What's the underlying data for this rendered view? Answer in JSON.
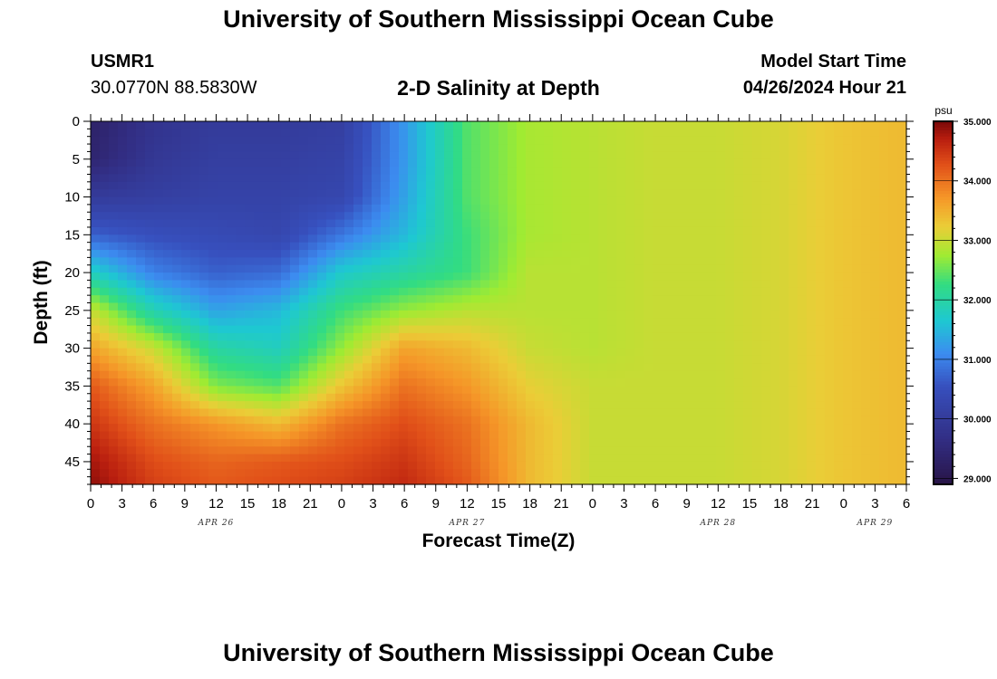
{
  "header": {
    "title": "University of Southern Mississippi Ocean Cube",
    "station_id": "USMR1",
    "coordinates": "30.0770N  88.5830W",
    "subtitle": "2-D Salinity at Depth",
    "start_label": "Model Start Time",
    "start_value": "04/26/2024 Hour 21"
  },
  "footer": {
    "title": "University of Southern Mississippi Ocean Cube"
  },
  "chart_data": {
    "type": "heatmap",
    "title": "2-D Salinity at Depth",
    "xlabel": "Forecast Time(Z)",
    "ylabel": "Depth (ft)",
    "x_tick_labels": [
      "0",
      "3",
      "6",
      "9",
      "12",
      "15",
      "18",
      "21",
      "0",
      "3",
      "6",
      "9",
      "12",
      "15",
      "18",
      "21",
      "0",
      "3",
      "6",
      "9",
      "12",
      "15",
      "18",
      "21",
      "0",
      "3",
      "6"
    ],
    "x_date_labels": [
      {
        "label": "APR 26",
        "hour_index": 4
      },
      {
        "label": "APR 27",
        "hour_index": 12
      },
      {
        "label": "APR 28",
        "hour_index": 20
      },
      {
        "label": "APR 29",
        "hour_index": 25
      }
    ],
    "ylim": [
      0,
      48
    ],
    "y_ticks": [
      0,
      5,
      10,
      15,
      20,
      25,
      30,
      35,
      40,
      45
    ],
    "colorbar": {
      "unit": "psu",
      "min": 28.9,
      "max": 35.0,
      "tick_values": [
        35,
        34,
        33,
        32,
        31,
        30,
        29
      ],
      "tick_labels": [
        "35.000",
        "34.000",
        "33.000",
        "32.000",
        "31.000",
        "30.000",
        "29.000"
      ]
    },
    "x_hours": [
      0,
      6,
      12,
      18,
      24,
      30,
      36,
      42,
      48,
      54,
      60,
      66,
      72,
      78
    ],
    "depths": [
      0,
      5,
      10,
      15,
      20,
      25,
      30,
      35,
      40,
      45,
      48
    ],
    "salinity_psu": [
      [
        29.3,
        29.8,
        30.0,
        30.0,
        30.1,
        31.2,
        32.4,
        32.8,
        32.9,
        33.0,
        33.0,
        33.1,
        33.3,
        33.4
      ],
      [
        29.4,
        29.9,
        30.1,
        30.1,
        30.2,
        31.2,
        32.4,
        32.8,
        32.9,
        33.0,
        33.0,
        33.1,
        33.3,
        33.4
      ],
      [
        30.0,
        30.1,
        30.2,
        30.2,
        30.3,
        31.3,
        32.4,
        32.8,
        32.9,
        33.0,
        33.0,
        33.1,
        33.3,
        33.4
      ],
      [
        30.7,
        30.5,
        30.4,
        30.3,
        30.9,
        31.5,
        32.3,
        32.8,
        32.9,
        33.0,
        33.0,
        33.1,
        33.3,
        33.4
      ],
      [
        31.8,
        31.0,
        30.7,
        30.8,
        31.7,
        32.0,
        32.3,
        32.9,
        32.9,
        33.0,
        33.0,
        33.1,
        33.3,
        33.4
      ],
      [
        33.0,
        31.9,
        31.3,
        31.5,
        32.3,
        32.7,
        32.9,
        32.9,
        32.9,
        33.0,
        33.0,
        33.1,
        33.3,
        33.4
      ],
      [
        33.6,
        33.0,
        32.0,
        31.8,
        32.7,
        33.6,
        33.4,
        33.0,
        32.9,
        33.0,
        33.0,
        33.1,
        33.3,
        33.4
      ],
      [
        34.2,
        33.6,
        32.6,
        32.4,
        33.3,
        34.0,
        33.7,
        33.2,
        33.0,
        33.0,
        33.0,
        33.1,
        33.3,
        33.4
      ],
      [
        34.5,
        34.0,
        33.7,
        33.4,
        34.0,
        34.3,
        34.0,
        33.4,
        33.0,
        33.0,
        33.0,
        33.1,
        33.3,
        33.4
      ],
      [
        34.8,
        34.3,
        34.1,
        34.2,
        34.3,
        34.5,
        34.1,
        33.4,
        33.0,
        33.0,
        33.0,
        33.1,
        33.3,
        33.4
      ],
      [
        34.9,
        34.4,
        34.2,
        34.3,
        34.4,
        34.6,
        34.2,
        33.4,
        33.0,
        33.0,
        33.0,
        33.1,
        33.3,
        33.4
      ]
    ]
  }
}
